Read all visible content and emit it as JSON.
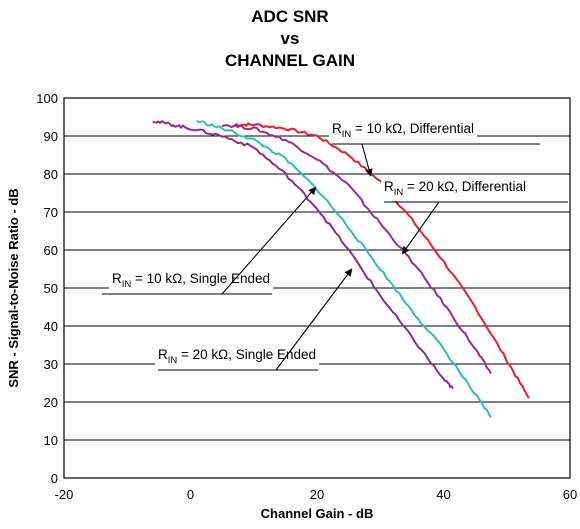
{
  "chart_data": {
    "type": "line",
    "title": [
      "ADC SNR",
      "vs",
      "CHANNEL GAIN"
    ],
    "xlabel": "Channel Gain - dB",
    "ylabel": "SNR - Signal-to-Noise Ratio - dB",
    "xlim": [
      -20,
      60
    ],
    "ylim": [
      0,
      100
    ],
    "xticks": [
      -20,
      0,
      20,
      40,
      60
    ],
    "yticks": [
      0,
      10,
      20,
      30,
      40,
      50,
      60,
      70,
      80,
      90,
      100
    ],
    "grid": "horizontal",
    "legend": "none",
    "series": [
      {
        "name": "RIN = 10 kΩ, Differential",
        "color": "#e8202a",
        "x": [
          7,
          10,
          15,
          20,
          25,
          30,
          35,
          40,
          45,
          50,
          53.5
        ],
        "y": [
          93,
          93,
          92,
          90,
          85,
          78,
          68,
          57,
          45,
          31,
          21
        ]
      },
      {
        "name": "RIN = 20 kΩ, Differential",
        "color": "#9b2b8f",
        "x": [
          5,
          10,
          15,
          20,
          25,
          30,
          35,
          40,
          45,
          47.5
        ],
        "y": [
          93,
          92,
          89,
          84,
          77,
          67,
          57,
          46,
          34,
          27.5
        ]
      },
      {
        "name": "RIN = 10 kΩ, Single Ended",
        "color": "#2ebdb8",
        "x": [
          1,
          5,
          10,
          15,
          20,
          25,
          30,
          35,
          40,
          45,
          47.5
        ],
        "y": [
          94,
          92,
          89,
          84,
          76,
          66,
          55,
          44,
          34,
          22,
          16
        ]
      },
      {
        "name": "RIN = 20 kΩ, Single Ended",
        "color": "#8b2c94",
        "x": [
          -6,
          -3,
          0,
          5,
          10,
          15,
          20,
          25,
          30,
          35,
          40,
          41.5
        ],
        "y": [
          94,
          93,
          92,
          90,
          87,
          80,
          71,
          60,
          48,
          37,
          26,
          23.5
        ]
      }
    ],
    "annotations": [
      {
        "prefix": "R",
        "sub": "IN",
        "text": " = 10 kΩ, Differential"
      },
      {
        "prefix": "R",
        "sub": "IN",
        "text": " = 20 kΩ, Differential"
      },
      {
        "prefix": "R",
        "sub": "IN",
        "text": " = 10 kΩ, Single Ended"
      },
      {
        "prefix": "R",
        "sub": "IN",
        "text": " = 20 kΩ, Single Ended"
      }
    ]
  }
}
